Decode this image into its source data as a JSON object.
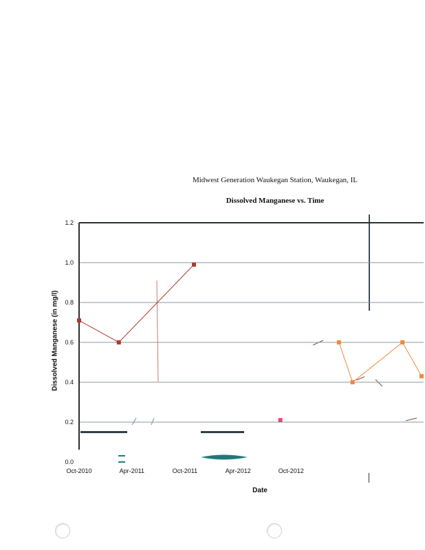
{
  "header": {
    "site": "Midwest Generation Waukegan Station, Waukegan, IL"
  },
  "chart_data": {
    "type": "scatter",
    "title": "Dissolved Manganese vs. Time",
    "xlabel": "Date",
    "ylabel": "Dissolved Manganese (in mg/l)",
    "ylim": [
      0.0,
      1.2
    ],
    "yticks": [
      "0.0",
      "0.2",
      "0.4",
      "0.6",
      "0.8",
      "1.0",
      "1.2"
    ],
    "xticks": [
      "Oct-2010",
      "Apr-2011",
      "Oct-2011",
      "Apr-2012",
      "Oct-2012"
    ],
    "grid": true,
    "series": [
      {
        "color": "#b03a2e",
        "points": [
          {
            "x": "2010-10-01",
            "y": 0.71
          },
          {
            "x": "2011-02-15",
            "y": 0.6
          },
          {
            "x": "2011-11-01",
            "y": 0.99
          }
        ]
      },
      {
        "color": "#f0883e",
        "points": [
          {
            "x": "2013-03-15",
            "y": 0.6
          },
          {
            "x": "2013-05-01",
            "y": 0.4
          },
          {
            "x": "2013-10-20",
            "y": 0.6
          },
          {
            "x": "2013-12-25",
            "y": 0.43
          }
        ]
      },
      {
        "color": "#e8457a",
        "points": [
          {
            "x": "2012-08-25",
            "y": 0.21
          }
        ]
      }
    ]
  }
}
